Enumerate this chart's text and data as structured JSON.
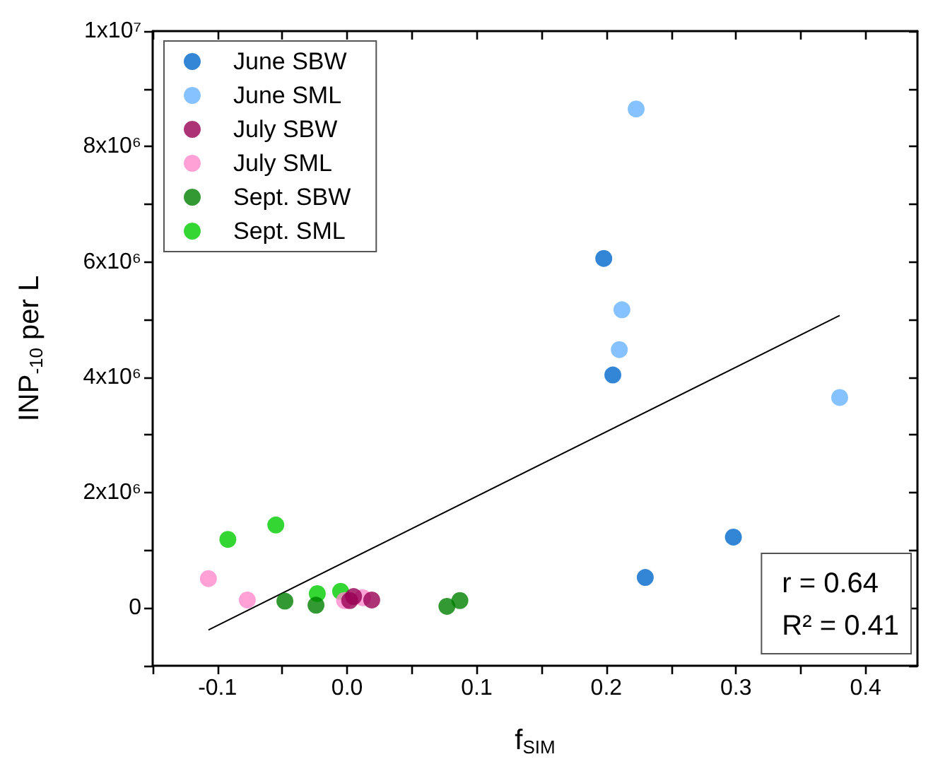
{
  "chart_data": {
    "type": "scatter",
    "xlabel": "f$_{SIM}$",
    "ylabel": "INP$_{-10}$ per L",
    "xlim": [
      -0.15,
      0.44
    ],
    "xticks": [
      {
        "value": -0.15,
        "label": null
      },
      -0.1,
      {
        "value": -0.05,
        "label": null
      },
      {
        "value": 0,
        "label": "0.0"
      },
      {
        "value": 0.05,
        "label": null
      },
      0.1,
      {
        "value": 0.15,
        "label": null
      },
      0.2,
      {
        "value": 0.25,
        "label": null
      },
      0.3,
      {
        "value": 0.35,
        "label": null
      },
      0.4
    ],
    "ylim": [
      -1000000,
      10000000
    ],
    "yticks": [
      {
        "value": -1000000,
        "label": null
      },
      0,
      {
        "value": 1000000,
        "label": null
      },
      {
        "value": 2000000,
        "label": "2x10⁶"
      },
      {
        "value": 3000000,
        "label": null
      },
      {
        "value": 4000000,
        "label": "4x10⁶"
      },
      {
        "value": 5000000,
        "label": null
      },
      {
        "value": 6000000,
        "label": "6x10⁶"
      },
      {
        "value": 7000000,
        "label": null
      },
      {
        "value": 8000000,
        "label": "8x10⁶"
      },
      {
        "value": 9000000,
        "label": null
      },
      {
        "value": 10000000,
        "label": "1x10⁷"
      }
    ],
    "grid": false,
    "legend": "top left",
    "marker": "circle",
    "annotations": [
      "r = 0.64",
      "R² = 0.41"
    ],
    "series": [
      {
        "name": "June SBW",
        "color": "#0066cc",
        "x": [
          0.198,
          0.205,
          0.298,
          0.23
        ],
        "values": [
          6060000,
          4040000,
          1230000,
          530000
        ]
      },
      {
        "name": "June SML",
        "color": "#66b3ff",
        "x": [
          0.223,
          0.212,
          0.21,
          0.38
        ],
        "values": [
          8650000,
          5170000,
          4480000,
          3650000
        ]
      },
      {
        "name": "July SBW",
        "color": "#990055",
        "x": [
          0.002,
          0.005,
          0.019
        ],
        "values": [
          130000,
          200000,
          140000
        ]
      },
      {
        "name": "July SML",
        "color": "#ff88cc",
        "x": [
          -0.107,
          -0.077,
          -0.002,
          0.012
        ],
        "values": [
          510000,
          140000,
          130000,
          180000
        ]
      },
      {
        "name": "Sept. SBW",
        "color": "#008000",
        "x": [
          -0.048,
          -0.024,
          0.077,
          0.087
        ],
        "values": [
          120000,
          50000,
          30000,
          130000
        ]
      },
      {
        "name": "Sept. SML",
        "color": "#00cc00",
        "x": [
          -0.092,
          -0.055,
          -0.023,
          -0.005
        ],
        "values": [
          1190000,
          1440000,
          250000,
          290000
        ]
      },
      {
        "type": "line",
        "color": "#000000",
        "marker": "none",
        "x": [
          -0.107,
          0.38
        ],
        "values": [
          -380000,
          5070000
        ]
      }
    ]
  }
}
